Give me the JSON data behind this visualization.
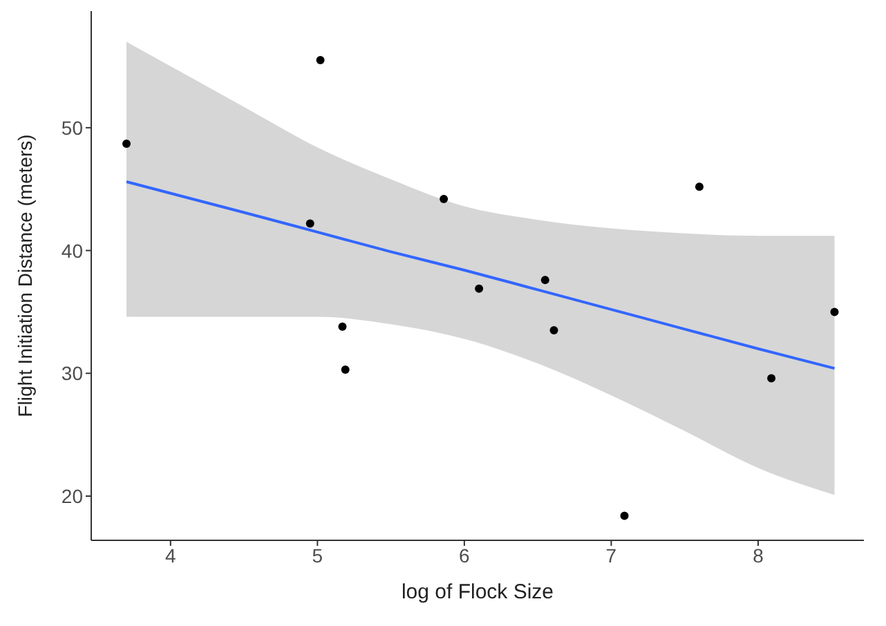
{
  "chart_data": {
    "type": "scatter",
    "xlabel": "log of Flock Size",
    "ylabel": "Flight Initiation Distance (meters)",
    "xlim": [
      3.46,
      8.72
    ],
    "ylim": [
      16.4,
      59.5
    ],
    "xticks": [
      4,
      5,
      6,
      7,
      8
    ],
    "yticks": [
      20,
      30,
      40,
      50
    ],
    "grid": false,
    "legend": false,
    "series": [
      {
        "marker": "circle",
        "color": "#000000",
        "x": [
          3.7,
          5.02,
          4.95,
          5.17,
          5.19,
          5.86,
          6.1,
          6.55,
          6.61,
          7.09,
          7.6,
          8.09,
          8.52
        ],
        "values": [
          48.7,
          55.5,
          42.2,
          33.8,
          30.3,
          44.2,
          36.9,
          37.6,
          33.5,
          18.4,
          45.2,
          29.6,
          35.0
        ]
      },
      {
        "type": "line",
        "color": "#3366ff",
        "line_style": "solid",
        "x": [
          3.7,
          4.5,
          5,
          5.5,
          6,
          6.5,
          7,
          7.5,
          8,
          8.52
        ],
        "values": [
          45.6,
          43.1,
          41.5,
          39.9,
          38.4,
          36.8,
          35.2,
          33.6,
          32.0,
          30.4
        ],
        "lower": [
          34.6,
          34.6,
          34.6,
          34.0,
          32.8,
          30.8,
          28.2,
          25.3,
          22.3,
          20.1
        ],
        "upper": [
          57.0,
          51.7,
          48.4,
          45.8,
          43.6,
          42.5,
          41.8,
          41.4,
          41.2,
          41.2
        ]
      }
    ]
  }
}
